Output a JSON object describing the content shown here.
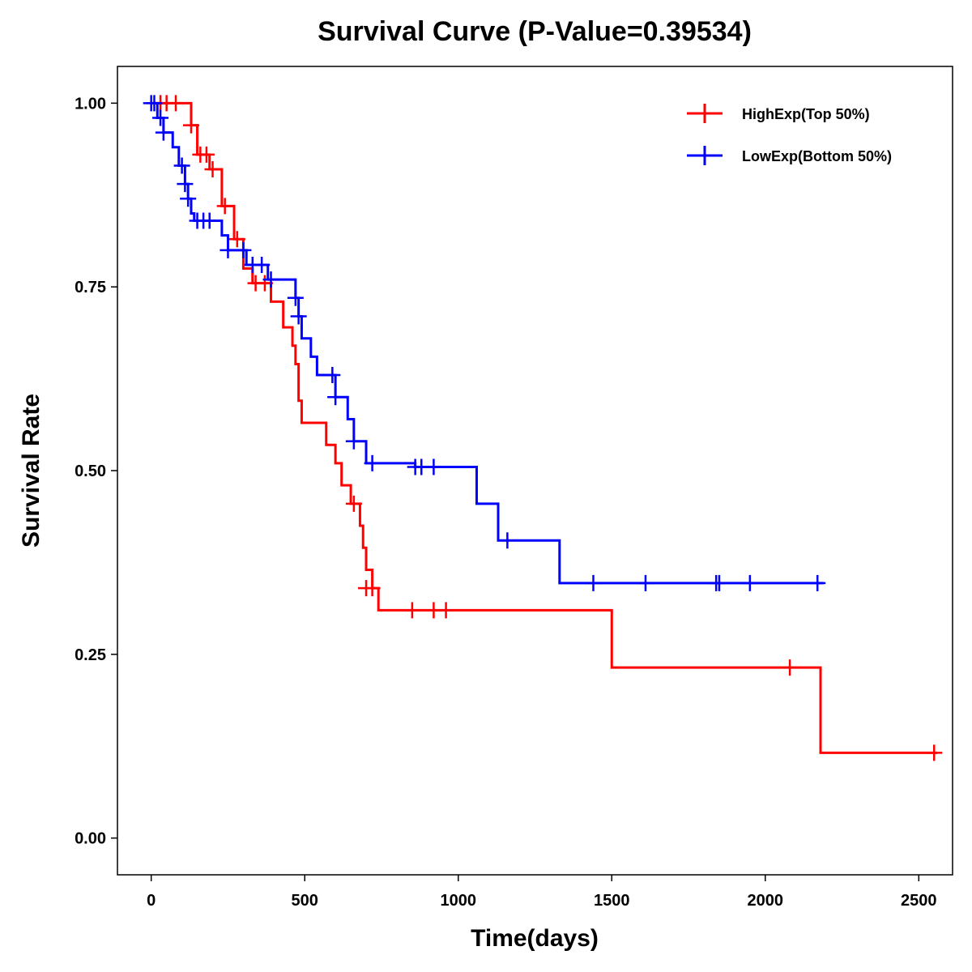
{
  "chart_data": {
    "type": "line",
    "title": "Survival Curve (P-Value=0.39534)",
    "xlabel": "Time(days)",
    "ylabel": "Survival Rate",
    "xlim": [
      -110,
      2610
    ],
    "ylim": [
      -0.05,
      1.05
    ],
    "xticks": [
      0,
      500,
      1000,
      1500,
      2000,
      2500
    ],
    "yticks": [
      0,
      0.25,
      0.5,
      0.75,
      1.0
    ],
    "xtick_labels": [
      "0",
      "500",
      "1000",
      "1500",
      "2000",
      "2500"
    ],
    "ytick_labels": [
      "0.00",
      "0.25",
      "0.50",
      "0.75",
      "1.00"
    ],
    "legend_position": "top-right",
    "series": [
      {
        "name": "HighExp(Top 50%)",
        "color": "#ff0000",
        "steps": [
          [
            0,
            1.0
          ],
          [
            130,
            0.97
          ],
          [
            150,
            0.93
          ],
          [
            190,
            0.91
          ],
          [
            230,
            0.86
          ],
          [
            270,
            0.815
          ],
          [
            300,
            0.775
          ],
          [
            330,
            0.755
          ],
          [
            390,
            0.73
          ],
          [
            430,
            0.695
          ],
          [
            460,
            0.67
          ],
          [
            470,
            0.645
          ],
          [
            480,
            0.595
          ],
          [
            490,
            0.565
          ],
          [
            570,
            0.535
          ],
          [
            600,
            0.51
          ],
          [
            620,
            0.48
          ],
          [
            650,
            0.455
          ],
          [
            680,
            0.425
          ],
          [
            690,
            0.395
          ],
          [
            700,
            0.365
          ],
          [
            720,
            0.34
          ],
          [
            740,
            0.31
          ],
          [
            1500,
            0.232
          ],
          [
            2180,
            0.116
          ],
          [
            2560,
            0.116
          ]
        ],
        "censors": [
          [
            30,
            1.0
          ],
          [
            50,
            1.0
          ],
          [
            80,
            1.0
          ],
          [
            130,
            0.97
          ],
          [
            160,
            0.93
          ],
          [
            180,
            0.93
          ],
          [
            200,
            0.91
          ],
          [
            240,
            0.86
          ],
          [
            280,
            0.815
          ],
          [
            340,
            0.755
          ],
          [
            370,
            0.755
          ],
          [
            660,
            0.455
          ],
          [
            700,
            0.34
          ],
          [
            720,
            0.34
          ],
          [
            850,
            0.31
          ],
          [
            920,
            0.31
          ],
          [
            960,
            0.31
          ],
          [
            2080,
            0.232
          ],
          [
            2550,
            0.116
          ]
        ]
      },
      {
        "name": "LowExp(Bottom 50%)",
        "color": "#0000ff",
        "steps": [
          [
            0,
            1.0
          ],
          [
            20,
            0.98
          ],
          [
            40,
            0.96
          ],
          [
            70,
            0.94
          ],
          [
            90,
            0.915
          ],
          [
            110,
            0.89
          ],
          [
            120,
            0.87
          ],
          [
            130,
            0.85
          ],
          [
            140,
            0.84
          ],
          [
            230,
            0.82
          ],
          [
            250,
            0.8
          ],
          [
            310,
            0.78
          ],
          [
            380,
            0.76
          ],
          [
            470,
            0.735
          ],
          [
            480,
            0.71
          ],
          [
            490,
            0.68
          ],
          [
            520,
            0.655
          ],
          [
            540,
            0.63
          ],
          [
            600,
            0.6
          ],
          [
            640,
            0.57
          ],
          [
            660,
            0.54
          ],
          [
            700,
            0.51
          ],
          [
            860,
            0.505
          ],
          [
            1060,
            0.455
          ],
          [
            1130,
            0.405
          ],
          [
            1330,
            0.347
          ],
          [
            2190,
            0.347
          ]
        ],
        "censors": [
          [
            0,
            1.0
          ],
          [
            10,
            1.0
          ],
          [
            30,
            0.98
          ],
          [
            40,
            0.96
          ],
          [
            100,
            0.915
          ],
          [
            110,
            0.89
          ],
          [
            120,
            0.87
          ],
          [
            150,
            0.84
          ],
          [
            170,
            0.84
          ],
          [
            190,
            0.84
          ],
          [
            250,
            0.8
          ],
          [
            300,
            0.8
          ],
          [
            330,
            0.78
          ],
          [
            360,
            0.78
          ],
          [
            390,
            0.76
          ],
          [
            470,
            0.735
          ],
          [
            480,
            0.71
          ],
          [
            590,
            0.63
          ],
          [
            600,
            0.6
          ],
          [
            660,
            0.54
          ],
          [
            720,
            0.51
          ],
          [
            860,
            0.505
          ],
          [
            880,
            0.505
          ],
          [
            920,
            0.505
          ],
          [
            1160,
            0.405
          ],
          [
            1440,
            0.347
          ],
          [
            1610,
            0.347
          ],
          [
            1840,
            0.347
          ],
          [
            1850,
            0.347
          ],
          [
            1950,
            0.347
          ],
          [
            2170,
            0.347
          ]
        ]
      }
    ]
  }
}
